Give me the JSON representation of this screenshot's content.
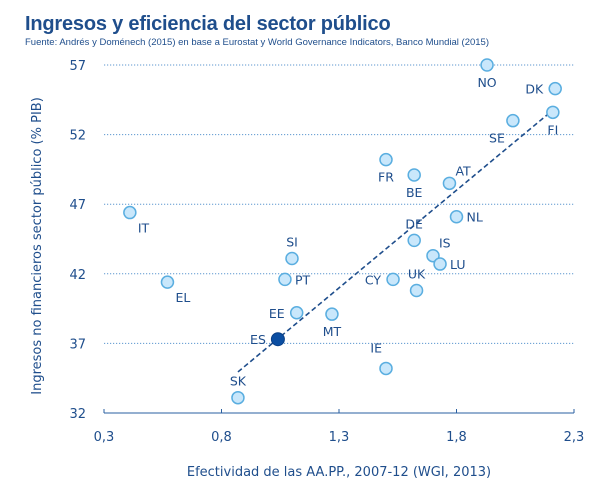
{
  "chart_data": {
    "type": "scatter",
    "title": "Ingresos y eficiencia del sector público",
    "subtitle": "Fuente: Andrés y Doménech (2015) en base a Eurostat y World Governance Indicators, Banco Mundial (2015)",
    "xlabel": "Efectividad de las AA.PP., 2007-12 (WGI, 2013)",
    "ylabel": "Ingresos no financieros sector público (% PIB)",
    "xlim": [
      0.3,
      2.3
    ],
    "ylim": [
      32,
      57
    ],
    "xticks": [
      "0,3",
      "0,8",
      "1,3",
      "1,8",
      "2,3"
    ],
    "xtick_values": [
      0.3,
      0.8,
      1.3,
      1.8,
      2.3
    ],
    "yticks": [
      "32",
      "37",
      "42",
      "47",
      "52",
      "57"
    ],
    "ytick_values": [
      32,
      37,
      42,
      47,
      52,
      57
    ],
    "grid": "horizontal-dotted",
    "colors": {
      "text": "#1f4e8c",
      "marker_fill": "#c9e7fb",
      "marker_stroke": "#5aaee0",
      "highlight": "#0b4ea2",
      "grid": "#5d97cf",
      "trend": "#1f4e8c"
    },
    "points": [
      {
        "label": "NO",
        "x": 1.93,
        "y": 57.0,
        "label_pos": "below"
      },
      {
        "label": "DK",
        "x": 2.22,
        "y": 55.3,
        "label_pos": "left"
      },
      {
        "label": "FI",
        "x": 2.21,
        "y": 53.6,
        "label_pos": "below"
      },
      {
        "label": "SE",
        "x": 2.04,
        "y": 53.0,
        "label_pos": "below-left"
      },
      {
        "label": "FR",
        "x": 1.5,
        "y": 50.2,
        "label_pos": "below"
      },
      {
        "label": "BE",
        "x": 1.62,
        "y": 49.1,
        "label_pos": "below"
      },
      {
        "label": "AT",
        "x": 1.77,
        "y": 48.5,
        "label_pos": "above-right"
      },
      {
        "label": "NL",
        "x": 1.8,
        "y": 46.1,
        "label_pos": "right"
      },
      {
        "label": "IT",
        "x": 0.41,
        "y": 46.4,
        "label_pos": "below-right"
      },
      {
        "label": "DE",
        "x": 1.62,
        "y": 44.4,
        "label_pos": "above"
      },
      {
        "label": "IS",
        "x": 1.7,
        "y": 43.3,
        "label_pos": "above-right"
      },
      {
        "label": "SI",
        "x": 1.1,
        "y": 43.1,
        "label_pos": "above"
      },
      {
        "label": "LU",
        "x": 1.73,
        "y": 42.7,
        "label_pos": "right"
      },
      {
        "label": "PT",
        "x": 1.07,
        "y": 41.6,
        "label_pos": "right"
      },
      {
        "label": "CY",
        "x": 1.53,
        "y": 41.6,
        "label_pos": "left"
      },
      {
        "label": "EL",
        "x": 0.57,
        "y": 41.4,
        "label_pos": "below-right"
      },
      {
        "label": "UK",
        "x": 1.63,
        "y": 40.8,
        "label_pos": "above"
      },
      {
        "label": "EE",
        "x": 1.12,
        "y": 39.2,
        "label_pos": "left"
      },
      {
        "label": "MT",
        "x": 1.27,
        "y": 39.1,
        "label_pos": "below"
      },
      {
        "label": "ES",
        "x": 1.04,
        "y": 37.3,
        "label_pos": "left",
        "highlight": true
      },
      {
        "label": "IE",
        "x": 1.5,
        "y": 35.2,
        "label_pos": "above-left"
      },
      {
        "label": "SK",
        "x": 0.87,
        "y": 33.1,
        "label_pos": "above"
      }
    ],
    "trendline": {
      "x": [
        0.87,
        2.22
      ],
      "y": [
        34.95,
        53.9
      ],
      "style": "dashed"
    }
  }
}
